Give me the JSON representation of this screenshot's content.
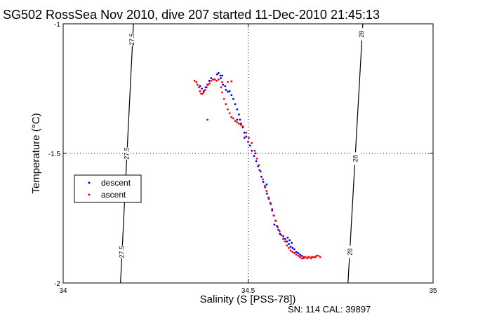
{
  "chart_data": {
    "type": "scatter",
    "title": "SG502 RossSea Nov 2010, dive 207 started 11-Dec-2010 21:45:13",
    "xlabel": "Salinity (S [PSS-78])",
    "ylabel": "Temperature (°C)",
    "xlim": [
      34,
      35
    ],
    "ylim": [
      -2,
      -1
    ],
    "xticks": [
      34,
      34.5,
      35
    ],
    "xtick_labels": [
      "34",
      "34.5",
      "35"
    ],
    "yticks": [
      -2,
      -1.5,
      -1
    ],
    "ytick_labels": [
      "-2",
      "-1.5",
      "-1"
    ],
    "grid": "dotted at x=34.5 and y=-1.5",
    "legend_placement": "left",
    "legend": [
      {
        "name": "descent",
        "color": "#0000ff",
        "marker": "dot"
      },
      {
        "name": "ascent",
        "color": "#ff0000",
        "marker": "dot"
      }
    ],
    "footer": "SN: 114  CAL: 39897",
    "isopycnals": [
      {
        "label": "27.5",
        "points": [
          [
            34.19,
            -1
          ],
          [
            34.155,
            -2
          ]
        ],
        "label_positions": [
          [
            34.186,
            -1.06
          ],
          [
            34.172,
            -1.5
          ],
          [
            34.158,
            -1.88
          ]
        ]
      },
      {
        "label": "28",
        "points": [
          [
            34.81,
            -1
          ],
          [
            34.77,
            -2
          ]
        ],
        "label_positions": [
          [
            34.806,
            -1.04
          ],
          [
            34.79,
            -1.52
          ],
          [
            34.775,
            -1.88
          ]
        ]
      }
    ],
    "series": [
      {
        "name": "descent",
        "color": "#0000ff",
        "points": [
          [
            34.416,
            -1.195
          ],
          [
            34.42,
            -1.19
          ],
          [
            34.425,
            -1.2
          ],
          [
            34.43,
            -1.2
          ],
          [
            34.426,
            -1.21
          ],
          [
            34.41,
            -1.215
          ],
          [
            34.4,
            -1.21
          ],
          [
            34.395,
            -1.22
          ],
          [
            34.39,
            -1.235
          ],
          [
            34.385,
            -1.245
          ],
          [
            34.38,
            -1.26
          ],
          [
            34.37,
            -1.24
          ],
          [
            34.375,
            -1.25
          ],
          [
            34.432,
            -1.235
          ],
          [
            34.44,
            -1.255
          ],
          [
            34.45,
            -1.26
          ],
          [
            34.455,
            -1.275
          ],
          [
            34.46,
            -1.29
          ],
          [
            34.465,
            -1.31
          ],
          [
            34.47,
            -1.33
          ],
          [
            34.475,
            -1.35
          ],
          [
            34.478,
            -1.37
          ],
          [
            34.481,
            -1.385
          ],
          [
            34.486,
            -1.4
          ],
          [
            34.49,
            -1.42
          ],
          [
            34.495,
            -1.435
          ],
          [
            34.5,
            -1.455
          ],
          [
            34.505,
            -1.47
          ],
          [
            34.51,
            -1.49
          ],
          [
            34.516,
            -1.51
          ],
          [
            34.522,
            -1.53
          ],
          [
            34.527,
            -1.55
          ],
          [
            34.531,
            -1.565
          ],
          [
            34.536,
            -1.59
          ],
          [
            34.541,
            -1.61
          ],
          [
            34.546,
            -1.63
          ],
          [
            34.551,
            -1.655
          ],
          [
            34.556,
            -1.675
          ],
          [
            34.561,
            -1.695
          ],
          [
            34.565,
            -1.72
          ],
          [
            34.569,
            -1.74
          ],
          [
            34.574,
            -1.76
          ],
          [
            34.578,
            -1.78
          ],
          [
            34.582,
            -1.795
          ],
          [
            34.586,
            -1.81
          ],
          [
            34.59,
            -1.815
          ],
          [
            34.595,
            -1.82
          ],
          [
            34.6,
            -1.83
          ],
          [
            34.605,
            -1.84
          ],
          [
            34.61,
            -1.85
          ],
          [
            34.615,
            -1.86
          ],
          [
            34.62,
            -1.865
          ],
          [
            34.625,
            -1.87
          ],
          [
            34.63,
            -1.88
          ],
          [
            34.635,
            -1.885
          ],
          [
            34.64,
            -1.89
          ],
          [
            34.645,
            -1.895
          ],
          [
            34.65,
            -1.9
          ],
          [
            34.655,
            -1.9
          ],
          [
            34.66,
            -1.905
          ],
          [
            34.607,
            -1.825
          ],
          [
            34.612,
            -1.835
          ],
          [
            34.618,
            -1.845
          ],
          [
            34.571,
            -1.775
          ],
          [
            34.55,
            -1.62
          ],
          [
            34.52,
            -1.5
          ],
          [
            34.49,
            -1.44
          ],
          [
            34.47,
            -1.37
          ],
          [
            34.438,
            -1.24
          ],
          [
            34.445,
            -1.262
          ]
        ]
      },
      {
        "name": "ascent",
        "color": "#ff0000",
        "points": [
          [
            34.355,
            -1.22
          ],
          [
            34.36,
            -1.225
          ],
          [
            34.363,
            -1.235
          ],
          [
            34.367,
            -1.245
          ],
          [
            34.37,
            -1.26
          ],
          [
            34.373,
            -1.27
          ],
          [
            34.376,
            -1.27
          ],
          [
            34.38,
            -1.265
          ],
          [
            34.384,
            -1.255
          ],
          [
            34.388,
            -1.245
          ],
          [
            34.392,
            -1.235
          ],
          [
            34.396,
            -1.23
          ],
          [
            34.4,
            -1.22
          ],
          [
            34.405,
            -1.215
          ],
          [
            34.41,
            -1.215
          ],
          [
            34.415,
            -1.22
          ],
          [
            34.42,
            -1.215
          ],
          [
            34.43,
            -1.225
          ],
          [
            34.445,
            -1.225
          ],
          [
            34.455,
            -1.222
          ],
          [
            34.427,
            -1.245
          ],
          [
            34.43,
            -1.265
          ],
          [
            34.435,
            -1.29
          ],
          [
            34.44,
            -1.31
          ],
          [
            34.445,
            -1.33
          ],
          [
            34.45,
            -1.345
          ],
          [
            34.455,
            -1.36
          ],
          [
            34.46,
            -1.365
          ],
          [
            34.465,
            -1.375
          ],
          [
            34.47,
            -1.38
          ],
          [
            34.475,
            -1.385
          ],
          [
            34.48,
            -1.39
          ],
          [
            34.485,
            -1.395
          ],
          [
            34.39,
            -1.37
          ],
          [
            34.495,
            -1.42
          ],
          [
            34.502,
            -1.44
          ],
          [
            34.51,
            -1.46
          ],
          [
            34.518,
            -1.49
          ],
          [
            34.524,
            -1.52
          ],
          [
            34.529,
            -1.545
          ],
          [
            34.534,
            -1.57
          ],
          [
            34.54,
            -1.6
          ],
          [
            34.545,
            -1.625
          ],
          [
            34.55,
            -1.645
          ],
          [
            34.555,
            -1.67
          ],
          [
            34.56,
            -1.69
          ],
          [
            34.565,
            -1.715
          ],
          [
            34.57,
            -1.74
          ],
          [
            34.575,
            -1.76
          ],
          [
            34.58,
            -1.785
          ],
          [
            34.585,
            -1.8
          ],
          [
            34.59,
            -1.815
          ],
          [
            34.595,
            -1.83
          ],
          [
            34.6,
            -1.84
          ],
          [
            34.605,
            -1.855
          ],
          [
            34.61,
            -1.865
          ],
          [
            34.615,
            -1.875
          ],
          [
            34.62,
            -1.88
          ],
          [
            34.625,
            -1.885
          ],
          [
            34.63,
            -1.89
          ],
          [
            34.635,
            -1.895
          ],
          [
            34.64,
            -1.9
          ],
          [
            34.645,
            -1.905
          ],
          [
            34.65,
            -1.905
          ],
          [
            34.655,
            -1.9
          ],
          [
            34.66,
            -1.905
          ],
          [
            34.665,
            -1.9
          ],
          [
            34.67,
            -1.905
          ],
          [
            34.675,
            -1.9
          ],
          [
            34.68,
            -1.9
          ],
          [
            34.685,
            -1.895
          ],
          [
            34.69,
            -1.895
          ],
          [
            34.695,
            -1.9
          ],
          [
            34.642,
            -1.895
          ],
          [
            34.652,
            -1.9
          ],
          [
            34.662,
            -1.9
          ],
          [
            34.672,
            -1.9
          ],
          [
            34.682,
            -1.9
          ],
          [
            34.67,
            -1.905
          ]
        ]
      }
    ]
  }
}
